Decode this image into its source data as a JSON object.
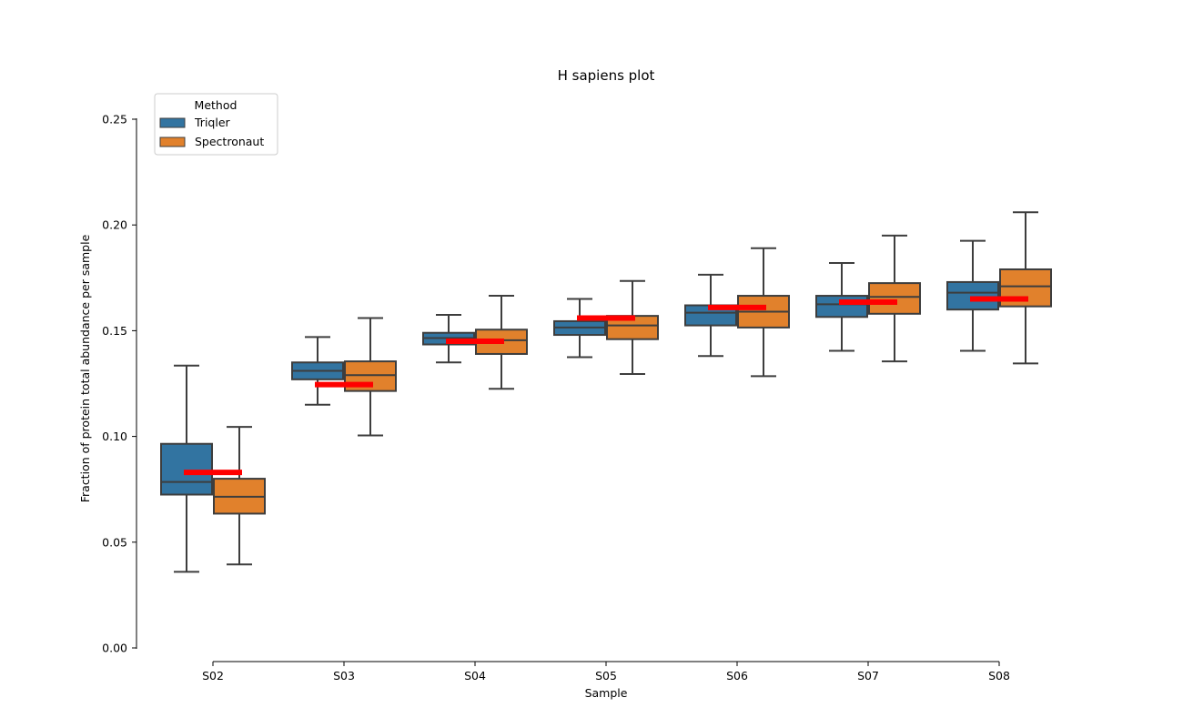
{
  "chart_data": {
    "type": "box",
    "title": "H sapiens plot",
    "xlabel": "Sample",
    "ylabel": "Fraction of protein total abundance per sample",
    "ylim": [
      0,
      0.25
    ],
    "yticks": [
      "0.00",
      "0.05",
      "0.10",
      "0.15",
      "0.20",
      "0.25"
    ],
    "categories": [
      "S02",
      "S03",
      "S04",
      "S05",
      "S06",
      "S07",
      "S08"
    ],
    "legend": {
      "title": "Method",
      "position": "top-left"
    },
    "series": [
      {
        "name": "Triqler",
        "color": "#3274a1",
        "boxes": [
          {
            "whislo": 0.036,
            "q1": 0.0725,
            "median": 0.0785,
            "q3": 0.0965,
            "whishi": 0.1335
          },
          {
            "whislo": 0.115,
            "q1": 0.127,
            "median": 0.131,
            "q3": 0.135,
            "whishi": 0.147
          },
          {
            "whislo": 0.135,
            "q1": 0.1435,
            "median": 0.1465,
            "q3": 0.149,
            "whishi": 0.1575
          },
          {
            "whislo": 0.1375,
            "q1": 0.148,
            "median": 0.1515,
            "q3": 0.1545,
            "whishi": 0.165
          },
          {
            "whislo": 0.138,
            "q1": 0.1525,
            "median": 0.1585,
            "q3": 0.162,
            "whishi": 0.1765
          },
          {
            "whislo": 0.1405,
            "q1": 0.1565,
            "median": 0.1625,
            "q3": 0.1665,
            "whishi": 0.182
          },
          {
            "whislo": 0.1405,
            "q1": 0.16,
            "median": 0.168,
            "q3": 0.173,
            "whishi": 0.1925
          }
        ]
      },
      {
        "name": "Spectronaut",
        "color": "#e1812c",
        "boxes": [
          {
            "whislo": 0.0395,
            "q1": 0.0635,
            "median": 0.0715,
            "q3": 0.08,
            "whishi": 0.1045
          },
          {
            "whislo": 0.1005,
            "q1": 0.1215,
            "median": 0.129,
            "q3": 0.1355,
            "whishi": 0.156
          },
          {
            "whislo": 0.1225,
            "q1": 0.139,
            "median": 0.1455,
            "q3": 0.1505,
            "whishi": 0.1665
          },
          {
            "whislo": 0.1295,
            "q1": 0.146,
            "median": 0.1525,
            "q3": 0.157,
            "whishi": 0.1735
          },
          {
            "whislo": 0.1285,
            "q1": 0.1515,
            "median": 0.159,
            "q3": 0.1665,
            "whishi": 0.189
          },
          {
            "whislo": 0.1355,
            "q1": 0.158,
            "median": 0.166,
            "q3": 0.1725,
            "whishi": 0.195
          },
          {
            "whislo": 0.1345,
            "q1": 0.1615,
            "median": 0.171,
            "q3": 0.179,
            "whishi": 0.206
          }
        ]
      }
    ],
    "reference_lines": {
      "color": "#ff0000",
      "values": [
        0.083,
        0.1245,
        0.145,
        0.156,
        0.161,
        0.1635,
        0.165
      ]
    }
  }
}
